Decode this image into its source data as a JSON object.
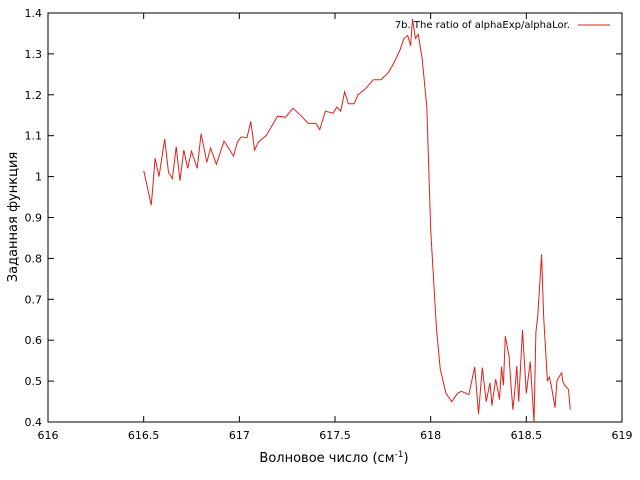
{
  "chart_data": {
    "type": "line",
    "title": "",
    "xlabel": "Волновое число (см",
    "xlabel_sup": "-1",
    "xlabel_end": ")",
    "ylabel": "Заданная функция",
    "xlim": [
      616,
      619
    ],
    "ylim": [
      0.4,
      1.4
    ],
    "xticks": [
      616,
      616.5,
      617,
      617.5,
      618,
      618.5,
      619
    ],
    "xtick_labels": [
      "616",
      "616.5",
      "617",
      "617.5",
      "618",
      "618.5",
      "619"
    ],
    "yticks": [
      0.4,
      0.5,
      0.6,
      0.7,
      0.8,
      0.9,
      1.0,
      1.1,
      1.2,
      1.3,
      1.4
    ],
    "ytick_labels": [
      "0.4",
      "0.5",
      "0.6",
      "0.7",
      "0.8",
      "0.9",
      "1",
      "1.1",
      "1.2",
      "1.3",
      "1.4"
    ],
    "grid": false,
    "legend_position": "top-right",
    "series": [
      {
        "name": "7b. The ratio of alphaExp/alphaLor.",
        "color": "#e0201a",
        "x": [
          616.5,
          616.54,
          616.56,
          616.58,
          616.61,
          616.63,
          616.65,
          616.67,
          616.69,
          616.71,
          616.73,
          616.75,
          616.78,
          616.8,
          616.83,
          616.85,
          616.88,
          616.92,
          616.95,
          616.97,
          616.99,
          617.01,
          617.04,
          617.06,
          617.08,
          617.1,
          617.14,
          617.2,
          617.24,
          617.28,
          617.32,
          617.36,
          617.4,
          617.42,
          617.45,
          617.49,
          617.51,
          617.53,
          617.55,
          617.57,
          617.6,
          617.62,
          617.66,
          617.7,
          617.74,
          617.78,
          617.81,
          617.84,
          617.86,
          617.88,
          617.895,
          617.905,
          617.92,
          617.935,
          617.955,
          617.98,
          618.0,
          618.03,
          618.05,
          618.08,
          618.11,
          618.14,
          618.16,
          618.2,
          618.23,
          618.25,
          618.27,
          618.29,
          618.31,
          618.32,
          618.34,
          618.36,
          618.37,
          618.38,
          618.39,
          618.41,
          618.42,
          618.43,
          618.44,
          618.45,
          618.46,
          618.48,
          618.5,
          618.52,
          618.54,
          618.55,
          618.56,
          618.58,
          618.59,
          618.61,
          618.62,
          618.63,
          618.65,
          618.66,
          618.67,
          618.685,
          618.69,
          618.7,
          618.72,
          618.73
        ],
        "y": [
          1.015,
          0.93,
          1.045,
          1.0,
          1.092,
          1.01,
          0.995,
          1.073,
          0.99,
          1.065,
          1.02,
          1.062,
          1.02,
          1.105,
          1.035,
          1.07,
          1.03,
          1.087,
          1.065,
          1.05,
          1.085,
          1.097,
          1.095,
          1.135,
          1.065,
          1.085,
          1.1,
          1.148,
          1.145,
          1.167,
          1.15,
          1.13,
          1.13,
          1.115,
          1.16,
          1.155,
          1.17,
          1.16,
          1.207,
          1.178,
          1.178,
          1.2,
          1.215,
          1.237,
          1.237,
          1.255,
          1.28,
          1.31,
          1.338,
          1.345,
          1.32,
          1.385,
          1.338,
          1.348,
          1.29,
          1.17,
          0.87,
          0.63,
          0.53,
          0.47,
          0.45,
          0.47,
          0.475,
          0.467,
          0.535,
          0.42,
          0.533,
          0.45,
          0.496,
          0.44,
          0.505,
          0.455,
          0.535,
          0.49,
          0.61,
          0.56,
          0.49,
          0.43,
          0.48,
          0.537,
          0.45,
          0.625,
          0.47,
          0.548,
          0.4,
          0.62,
          0.66,
          0.81,
          0.66,
          0.5,
          0.51,
          0.49,
          0.435,
          0.5,
          0.51,
          0.52,
          0.5,
          0.49,
          0.48,
          0.43
        ]
      }
    ]
  }
}
